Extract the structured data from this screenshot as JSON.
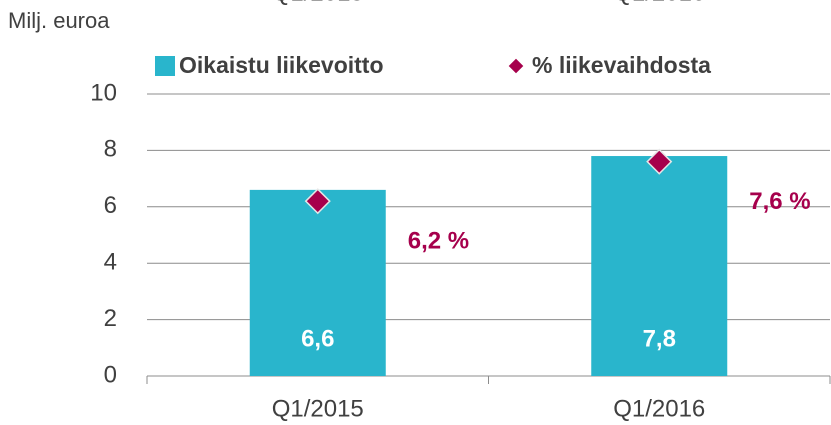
{
  "chart_data": {
    "type": "bar",
    "y_label": "Milj. euroa",
    "categories": [
      "Q1/2015",
      "Q1/2016"
    ],
    "series": [
      {
        "name": "Oikaistu liikevoitto",
        "color": "#29b5cc",
        "values": [
          6.6,
          7.8
        ],
        "value_labels": [
          "6,6",
          "7,8"
        ]
      },
      {
        "name": "% liikevaihdosta",
        "color": "#a6004c",
        "marker": "diamond",
        "values": [
          6.2,
          7.6
        ],
        "value_labels": [
          "6,2 %",
          "7,6 %"
        ]
      }
    ],
    "ylim": [
      0,
      10
    ],
    "yticks": [
      0,
      2,
      4,
      6,
      8,
      10
    ],
    "grid": true
  }
}
